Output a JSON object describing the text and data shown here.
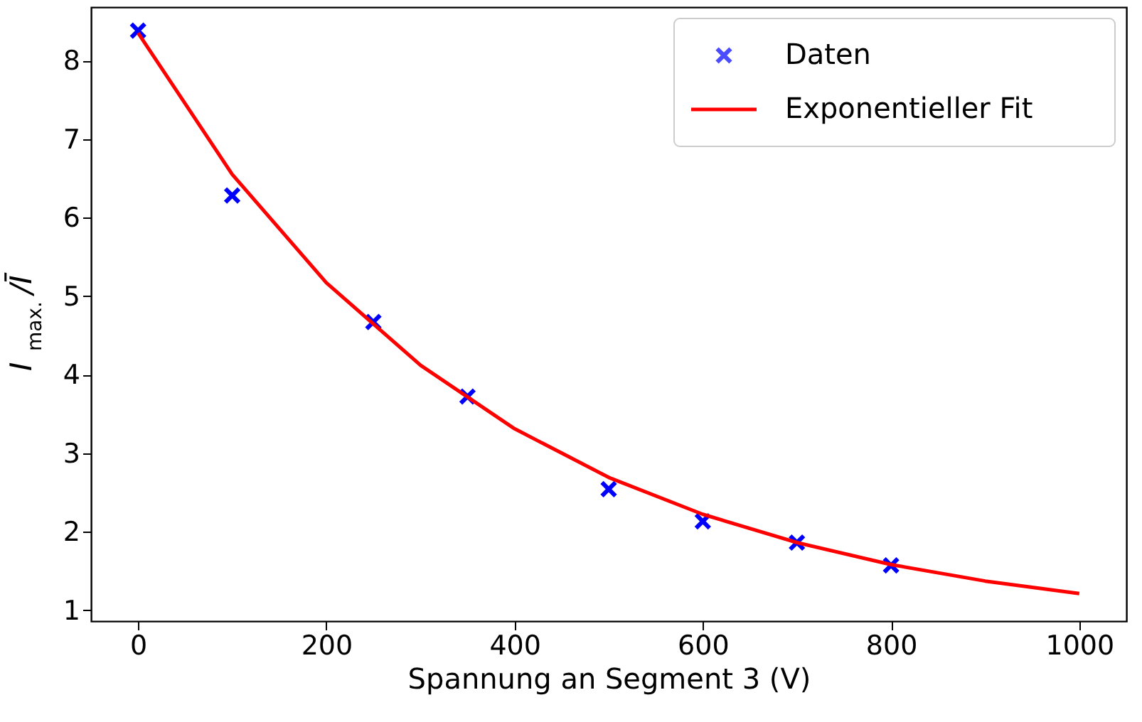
{
  "chart_data": {
    "type": "scatter",
    "xlabel": "Spannung an Segment 3 (V)",
    "ylabel": "I$_{max.}$/Ī",
    "xlim": [
      -50,
      1050
    ],
    "ylim": [
      0.86,
      8.68
    ],
    "xticks": [
      0,
      200,
      400,
      600,
      800,
      1000
    ],
    "yticks": [
      1,
      2,
      3,
      4,
      5,
      6,
      7,
      8
    ],
    "grid": false,
    "legend": "top right",
    "series": [
      {
        "name": "Daten",
        "type": "scatter",
        "marker": "cross",
        "color": "#0000ff",
        "x": [
          0,
          100,
          250,
          350,
          500,
          600,
          700,
          800
        ],
        "values": [
          8.38,
          6.28,
          4.67,
          3.72,
          2.54,
          2.13,
          1.86,
          1.57
        ]
      },
      {
        "name": "Exponentieller Fit",
        "type": "line",
        "marker": "none",
        "line_style": "solid",
        "color": "#ff0000",
        "x": [
          0,
          100,
          200,
          300,
          400,
          500,
          600,
          700,
          800,
          900,
          1000
        ],
        "values": [
          8.35,
          6.55,
          5.17,
          4.12,
          3.31,
          2.69,
          2.22,
          1.86,
          1.58,
          1.37,
          1.21
        ]
      }
    ]
  }
}
